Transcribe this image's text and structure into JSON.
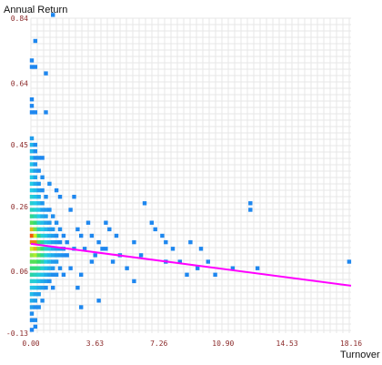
{
  "chart_data": {
    "type": "heatmap",
    "title": "",
    "xlabel": "Turnover",
    "ylabel": "Annual Return",
    "xlim": [
      0,
      18.16
    ],
    "ylim": [
      -0.13,
      0.84
    ],
    "x_ticks": [
      "0.00",
      "3.63",
      "7.26",
      "10.90",
      "14.53",
      "18.16"
    ],
    "y_ticks": [
      "-0.13",
      "0.06",
      "0.26",
      "0.45",
      "0.64",
      "0.84"
    ],
    "grid": true,
    "trend_line": {
      "x": [
        0,
        18.16
      ],
      "y": [
        0.145,
        0.016
      ],
      "color": "#ff00ff"
    },
    "density_colors": {
      "low": "#1e7ef0",
      "mid_low": "#22cbe6",
      "mid": "#33dd66",
      "mid_high": "#ccee22",
      "high": "#ff2a00"
    },
    "cells": [
      {
        "x": 0.05,
        "y": 0.11,
        "d": 0.7
      },
      {
        "x": 0.05,
        "y": 0.13,
        "d": 0.8
      },
      {
        "x": 0.05,
        "y": 0.15,
        "d": 0.9
      },
      {
        "x": 0.05,
        "y": 0.17,
        "d": 0.95
      },
      {
        "x": 0.05,
        "y": 0.19,
        "d": 0.85
      },
      {
        "x": 0.05,
        "y": 0.09,
        "d": 0.6
      },
      {
        "x": 0.05,
        "y": 0.07,
        "d": 0.5
      },
      {
        "x": 0.05,
        "y": 0.21,
        "d": 0.6
      },
      {
        "x": 0.05,
        "y": 0.23,
        "d": 0.45
      },
      {
        "x": 0.05,
        "y": 0.25,
        "d": 0.35
      },
      {
        "x": 0.05,
        "y": 0.05,
        "d": 0.4
      },
      {
        "x": 0.25,
        "y": 0.11,
        "d": 0.75
      },
      {
        "x": 0.25,
        "y": 0.13,
        "d": 0.85
      },
      {
        "x": 0.25,
        "y": 0.15,
        "d": 0.9
      },
      {
        "x": 0.25,
        "y": 0.17,
        "d": 0.8
      },
      {
        "x": 0.25,
        "y": 0.09,
        "d": 0.6
      },
      {
        "x": 0.25,
        "y": 0.19,
        "d": 0.65
      },
      {
        "x": 0.25,
        "y": 0.07,
        "d": 0.5
      },
      {
        "x": 0.25,
        "y": 0.21,
        "d": 0.5
      },
      {
        "x": 0.45,
        "y": 0.11,
        "d": 0.6
      },
      {
        "x": 0.45,
        "y": 0.13,
        "d": 0.65
      },
      {
        "x": 0.45,
        "y": 0.15,
        "d": 0.6
      },
      {
        "x": 0.45,
        "y": 0.09,
        "d": 0.55
      },
      {
        "x": 0.45,
        "y": 0.17,
        "d": 0.5
      },
      {
        "x": 0.45,
        "y": 0.07,
        "d": 0.45
      },
      {
        "x": 0.65,
        "y": 0.11,
        "d": 0.45
      },
      {
        "x": 0.65,
        "y": 0.13,
        "d": 0.5
      },
      {
        "x": 0.65,
        "y": 0.09,
        "d": 0.4
      },
      {
        "x": 0.65,
        "y": 0.15,
        "d": 0.42
      },
      {
        "x": 0.05,
        "y": 0.27,
        "d": 0.3
      },
      {
        "x": 0.05,
        "y": 0.29,
        "d": 0.3
      },
      {
        "x": 0.05,
        "y": 0.31,
        "d": 0.25
      },
      {
        "x": 0.05,
        "y": 0.33,
        "d": 0.25
      },
      {
        "x": 0.05,
        "y": 0.35,
        "d": 0.25
      },
      {
        "x": 0.05,
        "y": 0.37,
        "d": 0.22
      },
      {
        "x": 0.05,
        "y": 0.39,
        "d": 0.22
      },
      {
        "x": 0.05,
        "y": 0.41,
        "d": 0.2
      },
      {
        "x": 0.05,
        "y": 0.43,
        "d": 0.18
      },
      {
        "x": 0.05,
        "y": 0.45,
        "d": 0.18
      },
      {
        "x": 0.05,
        "y": 0.47,
        "d": 0.1
      },
      {
        "x": 0.05,
        "y": 0.03,
        "d": 0.3
      },
      {
        "x": 0.05,
        "y": 0.01,
        "d": 0.22
      },
      {
        "x": 0.05,
        "y": -0.01,
        "d": 0.2
      },
      {
        "x": 0.05,
        "y": -0.03,
        "d": 0.15
      },
      {
        "x": 0.05,
        "y": -0.05,
        "d": 0.1
      },
      {
        "x": 0.05,
        "y": -0.07,
        "d": 0.05
      },
      {
        "x": 0.05,
        "y": -0.09,
        "d": 0.05
      },
      {
        "x": 0.05,
        "y": -0.12,
        "d": 0.02
      },
      {
        "x": 0.25,
        "y": 0.23,
        "d": 0.35
      },
      {
        "x": 0.25,
        "y": 0.25,
        "d": 0.3
      },
      {
        "x": 0.25,
        "y": 0.27,
        "d": 0.25
      },
      {
        "x": 0.25,
        "y": 0.29,
        "d": 0.22
      },
      {
        "x": 0.25,
        "y": 0.31,
        "d": 0.2
      },
      {
        "x": 0.25,
        "y": 0.33,
        "d": 0.15
      },
      {
        "x": 0.25,
        "y": 0.35,
        "d": 0.12
      },
      {
        "x": 0.25,
        "y": 0.37,
        "d": 0.1
      },
      {
        "x": 0.25,
        "y": 0.39,
        "d": 0.08
      },
      {
        "x": 0.25,
        "y": 0.41,
        "d": 0.05
      },
      {
        "x": 0.25,
        "y": 0.43,
        "d": 0.05
      },
      {
        "x": 0.25,
        "y": 0.45,
        "d": 0.05
      },
      {
        "x": 0.25,
        "y": 0.05,
        "d": 0.35
      },
      {
        "x": 0.25,
        "y": 0.03,
        "d": 0.28
      },
      {
        "x": 0.25,
        "y": 0.01,
        "d": 0.2
      },
      {
        "x": 0.25,
        "y": -0.01,
        "d": 0.12
      },
      {
        "x": 0.25,
        "y": -0.03,
        "d": 0.1
      },
      {
        "x": 0.25,
        "y": -0.05,
        "d": 0.05
      },
      {
        "x": 0.25,
        "y": -0.09,
        "d": 0.05
      },
      {
        "x": 0.25,
        "y": -0.11,
        "d": 0.03
      },
      {
        "x": 0.45,
        "y": 0.19,
        "d": 0.35
      },
      {
        "x": 0.45,
        "y": 0.21,
        "d": 0.3
      },
      {
        "x": 0.45,
        "y": 0.23,
        "d": 0.25
      },
      {
        "x": 0.45,
        "y": 0.25,
        "d": 0.22
      },
      {
        "x": 0.45,
        "y": 0.27,
        "d": 0.18
      },
      {
        "x": 0.45,
        "y": 0.29,
        "d": 0.15
      },
      {
        "x": 0.45,
        "y": 0.31,
        "d": 0.1
      },
      {
        "x": 0.45,
        "y": 0.33,
        "d": 0.08
      },
      {
        "x": 0.45,
        "y": 0.37,
        "d": 0.05
      },
      {
        "x": 0.45,
        "y": 0.41,
        "d": 0.05
      },
      {
        "x": 0.45,
        "y": 0.05,
        "d": 0.3
      },
      {
        "x": 0.45,
        "y": 0.03,
        "d": 0.2
      },
      {
        "x": 0.45,
        "y": 0.01,
        "d": 0.15
      },
      {
        "x": 0.45,
        "y": -0.01,
        "d": 0.1
      },
      {
        "x": 0.45,
        "y": -0.05,
        "d": 0.05
      },
      {
        "x": 0.65,
        "y": 0.17,
        "d": 0.3
      },
      {
        "x": 0.65,
        "y": 0.19,
        "d": 0.25
      },
      {
        "x": 0.65,
        "y": 0.21,
        "d": 0.2
      },
      {
        "x": 0.65,
        "y": 0.23,
        "d": 0.15
      },
      {
        "x": 0.65,
        "y": 0.25,
        "d": 0.1
      },
      {
        "x": 0.65,
        "y": 0.27,
        "d": 0.08
      },
      {
        "x": 0.65,
        "y": 0.31,
        "d": 0.05
      },
      {
        "x": 0.65,
        "y": 0.35,
        "d": 0.05
      },
      {
        "x": 0.65,
        "y": 0.07,
        "d": 0.3
      },
      {
        "x": 0.65,
        "y": 0.05,
        "d": 0.22
      },
      {
        "x": 0.65,
        "y": 0.03,
        "d": 0.15
      },
      {
        "x": 0.65,
        "y": 0.01,
        "d": 0.1
      },
      {
        "x": 0.65,
        "y": -0.03,
        "d": 0.05
      },
      {
        "x": 0.85,
        "y": 0.11,
        "d": 0.3
      },
      {
        "x": 0.85,
        "y": 0.13,
        "d": 0.32
      },
      {
        "x": 0.85,
        "y": 0.15,
        "d": 0.28
      },
      {
        "x": 0.85,
        "y": 0.09,
        "d": 0.25
      },
      {
        "x": 0.85,
        "y": 0.17,
        "d": 0.22
      },
      {
        "x": 0.85,
        "y": 0.19,
        "d": 0.18
      },
      {
        "x": 0.85,
        "y": 0.21,
        "d": 0.12
      },
      {
        "x": 0.85,
        "y": 0.23,
        "d": 0.1
      },
      {
        "x": 0.85,
        "y": 0.25,
        "d": 0.08
      },
      {
        "x": 0.85,
        "y": 0.29,
        "d": 0.05
      },
      {
        "x": 0.85,
        "y": 0.07,
        "d": 0.2
      },
      {
        "x": 0.85,
        "y": 0.05,
        "d": 0.15
      },
      {
        "x": 0.85,
        "y": 0.03,
        "d": 0.1
      },
      {
        "x": 0.85,
        "y": 0.01,
        "d": 0.05
      },
      {
        "x": 1.05,
        "y": 0.11,
        "d": 0.2
      },
      {
        "x": 1.05,
        "y": 0.13,
        "d": 0.22
      },
      {
        "x": 1.05,
        "y": 0.15,
        "d": 0.2
      },
      {
        "x": 1.05,
        "y": 0.09,
        "d": 0.18
      },
      {
        "x": 1.05,
        "y": 0.17,
        "d": 0.15
      },
      {
        "x": 1.05,
        "y": 0.19,
        "d": 0.1
      },
      {
        "x": 1.05,
        "y": 0.21,
        "d": 0.08
      },
      {
        "x": 1.05,
        "y": 0.25,
        "d": 0.05
      },
      {
        "x": 1.05,
        "y": 0.07,
        "d": 0.15
      },
      {
        "x": 1.05,
        "y": 0.05,
        "d": 0.1
      },
      {
        "x": 1.05,
        "y": 0.03,
        "d": 0.05
      },
      {
        "x": 1.05,
        "y": 0.33,
        "d": 0.05
      },
      {
        "x": 1.25,
        "y": 0.11,
        "d": 0.15
      },
      {
        "x": 1.25,
        "y": 0.13,
        "d": 0.15
      },
      {
        "x": 1.25,
        "y": 0.15,
        "d": 0.12
      },
      {
        "x": 1.25,
        "y": 0.09,
        "d": 0.1
      },
      {
        "x": 1.25,
        "y": 0.17,
        "d": 0.1
      },
      {
        "x": 1.25,
        "y": 0.19,
        "d": 0.08
      },
      {
        "x": 1.25,
        "y": 0.23,
        "d": 0.05
      },
      {
        "x": 1.25,
        "y": 0.07,
        "d": 0.08
      },
      {
        "x": 1.25,
        "y": 0.05,
        "d": 0.05
      },
      {
        "x": 1.25,
        "y": 0.01,
        "d": 0.03
      },
      {
        "x": 1.45,
        "y": 0.11,
        "d": 0.1
      },
      {
        "x": 1.45,
        "y": 0.13,
        "d": 0.1
      },
      {
        "x": 1.45,
        "y": 0.15,
        "d": 0.08
      },
      {
        "x": 1.45,
        "y": 0.17,
        "d": 0.05
      },
      {
        "x": 1.45,
        "y": 0.09,
        "d": 0.08
      },
      {
        "x": 1.45,
        "y": 0.21,
        "d": 0.05
      },
      {
        "x": 1.45,
        "y": 0.05,
        "d": 0.05
      },
      {
        "x": 1.65,
        "y": 0.13,
        "d": 0.08
      },
      {
        "x": 1.65,
        "y": 0.11,
        "d": 0.08
      },
      {
        "x": 1.65,
        "y": 0.15,
        "d": 0.05
      },
      {
        "x": 1.65,
        "y": 0.19,
        "d": 0.05
      },
      {
        "x": 1.65,
        "y": 0.07,
        "d": 0.05
      },
      {
        "x": 1.85,
        "y": 0.13,
        "d": 0.05
      },
      {
        "x": 1.85,
        "y": 0.11,
        "d": 0.05
      },
      {
        "x": 1.85,
        "y": 0.17,
        "d": 0.03
      },
      {
        "x": 1.85,
        "y": 0.05,
        "d": 0.03
      },
      {
        "x": 2.05,
        "y": 0.15,
        "d": 0.03
      },
      {
        "x": 2.05,
        "y": 0.11,
        "d": 0.03
      },
      {
        "x": 0.05,
        "y": 0.55,
        "d": 0.03
      },
      {
        "x": 0.05,
        "y": 0.57,
        "d": 0.03
      },
      {
        "x": 0.05,
        "y": 0.59,
        "d": 0.03
      },
      {
        "x": 0.05,
        "y": 0.69,
        "d": 0.03
      },
      {
        "x": 0.05,
        "y": 0.71,
        "d": 0.03
      },
      {
        "x": 0.25,
        "y": 0.69,
        "d": 0.03
      },
      {
        "x": 0.25,
        "y": 0.55,
        "d": 0.03
      },
      {
        "x": 0.25,
        "y": 0.77,
        "d": 0.03
      },
      {
        "x": 0.85,
        "y": 0.67,
        "d": 0.03
      },
      {
        "x": 1.25,
        "y": 0.85,
        "d": 0.03
      },
      {
        "x": 0.85,
        "y": 0.55,
        "d": 0.03
      },
      {
        "x": 0.65,
        "y": 0.41,
        "d": 0.03
      },
      {
        "x": 1.45,
        "y": 0.31,
        "d": 0.03
      },
      {
        "x": 1.65,
        "y": 0.29,
        "d": 0.03
      },
      {
        "x": 2.25,
        "y": 0.25,
        "d": 0.03
      },
      {
        "x": 2.45,
        "y": 0.13,
        "d": 0.03
      },
      {
        "x": 2.45,
        "y": 0.29,
        "d": 0.03
      },
      {
        "x": 2.65,
        "y": 0.19,
        "d": 0.03
      },
      {
        "x": 2.85,
        "y": 0.17,
        "d": 0.03
      },
      {
        "x": 2.85,
        "y": 0.05,
        "d": 0.03
      },
      {
        "x": 3.05,
        "y": 0.13,
        "d": 0.03
      },
      {
        "x": 3.25,
        "y": 0.21,
        "d": 0.03
      },
      {
        "x": 3.45,
        "y": 0.17,
        "d": 0.03
      },
      {
        "x": 3.65,
        "y": 0.11,
        "d": 0.03
      },
      {
        "x": 3.85,
        "y": 0.15,
        "d": 0.03
      },
      {
        "x": 4.05,
        "y": 0.13,
        "d": 0.03
      },
      {
        "x": 4.25,
        "y": 0.21,
        "d": 0.03
      },
      {
        "x": 4.45,
        "y": 0.19,
        "d": 0.03
      },
      {
        "x": 4.65,
        "y": 0.09,
        "d": 0.03
      },
      {
        "x": 4.85,
        "y": 0.17,
        "d": 0.03
      },
      {
        "x": 2.25,
        "y": 0.07,
        "d": 0.03
      },
      {
        "x": 2.65,
        "y": 0.01,
        "d": 0.03
      },
      {
        "x": 3.45,
        "y": 0.09,
        "d": 0.03
      },
      {
        "x": 4.25,
        "y": 0.13,
        "d": 0.03
      },
      {
        "x": 5.05,
        "y": 0.11,
        "d": 0.03
      },
      {
        "x": 5.45,
        "y": 0.07,
        "d": 0.03
      },
      {
        "x": 5.85,
        "y": 0.15,
        "d": 0.03
      },
      {
        "x": 6.25,
        "y": 0.11,
        "d": 0.03
      },
      {
        "x": 6.85,
        "y": 0.21,
        "d": 0.03
      },
      {
        "x": 7.05,
        "y": 0.19,
        "d": 0.03
      },
      {
        "x": 7.45,
        "y": 0.17,
        "d": 0.03
      },
      {
        "x": 7.65,
        "y": 0.15,
        "d": 0.03
      },
      {
        "x": 7.65,
        "y": 0.09,
        "d": 0.03
      },
      {
        "x": 8.05,
        "y": 0.13,
        "d": 0.03
      },
      {
        "x": 8.45,
        "y": 0.09,
        "d": 0.03
      },
      {
        "x": 8.85,
        "y": 0.05,
        "d": 0.03
      },
      {
        "x": 9.05,
        "y": 0.15,
        "d": 0.03
      },
      {
        "x": 9.45,
        "y": 0.07,
        "d": 0.03
      },
      {
        "x": 9.65,
        "y": 0.13,
        "d": 0.03
      },
      {
        "x": 10.05,
        "y": 0.09,
        "d": 0.03
      },
      {
        "x": 10.45,
        "y": 0.05,
        "d": 0.03
      },
      {
        "x": 11.45,
        "y": 0.07,
        "d": 0.03
      },
      {
        "x": 12.45,
        "y": 0.25,
        "d": 0.03
      },
      {
        "x": 12.45,
        "y": 0.27,
        "d": 0.03
      },
      {
        "x": 12.85,
        "y": 0.07,
        "d": 0.03
      },
      {
        "x": 18.05,
        "y": 0.09,
        "d": 0.03
      },
      {
        "x": 6.45,
        "y": 0.27,
        "d": 0.03
      },
      {
        "x": 5.85,
        "y": 0.03,
        "d": 0.03
      },
      {
        "x": 3.85,
        "y": -0.03,
        "d": 0.03
      },
      {
        "x": 2.85,
        "y": -0.05,
        "d": 0.03
      }
    ]
  }
}
